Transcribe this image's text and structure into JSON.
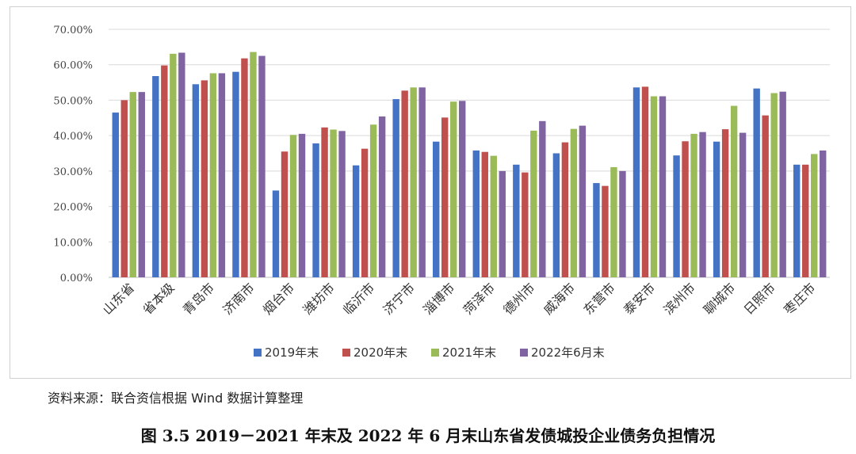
{
  "chart_data": {
    "type": "bar",
    "title": "",
    "xlabel": "",
    "ylabel": "",
    "ylim": [
      0,
      70
    ],
    "y_tick_step": 10,
    "y_tick_format": "percent_2dp",
    "grid": true,
    "legend_position": "bottom",
    "categories": [
      "山东省",
      "省本级",
      "青岛市",
      "济南市",
      "烟台市",
      "潍坊市",
      "临沂市",
      "济宁市",
      "淄博市",
      "菏泽市",
      "德州市",
      "威海市",
      "东营市",
      "泰安市",
      "滨州市",
      "聊城市",
      "日照市",
      "枣庄市"
    ],
    "series": [
      {
        "name": "2019年末",
        "color": "#4472C4",
        "values": [
          46.5,
          56.8,
          54.5,
          58.0,
          24.5,
          37.8,
          31.6,
          50.3,
          38.3,
          35.8,
          31.8,
          35.0,
          26.6,
          53.6,
          34.4,
          38.3,
          53.3,
          31.8
        ]
      },
      {
        "name": "2020年末",
        "color": "#C0504D",
        "values": [
          50.0,
          59.8,
          55.6,
          61.8,
          35.5,
          42.3,
          36.3,
          52.7,
          45.1,
          35.4,
          29.6,
          38.1,
          25.8,
          53.8,
          38.4,
          41.8,
          45.7,
          31.8
        ]
      },
      {
        "name": "2021年末",
        "color": "#9BBB59",
        "values": [
          52.3,
          63.1,
          57.6,
          63.6,
          40.2,
          41.7,
          43.1,
          53.6,
          49.6,
          34.3,
          41.4,
          41.9,
          31.1,
          51.1,
          40.5,
          48.4,
          52.0,
          34.8
        ]
      },
      {
        "name": "2022年6月末",
        "color": "#8064A2",
        "values": [
          52.3,
          63.4,
          57.6,
          62.5,
          40.5,
          41.3,
          45.4,
          53.6,
          49.8,
          30.0,
          44.1,
          42.8,
          30.0,
          51.1,
          41.0,
          40.8,
          52.4,
          35.8
        ]
      }
    ]
  },
  "colors": {
    "grid": "#d9d9d9",
    "axis": "#bfbfbf"
  },
  "source_note": "资料来源：联合资信根据 Wind 数据计算整理",
  "figure_caption": "图 3.5   2019－2021 年末及 2022 年 6 月末山东省发债城投企业债务负担情况"
}
